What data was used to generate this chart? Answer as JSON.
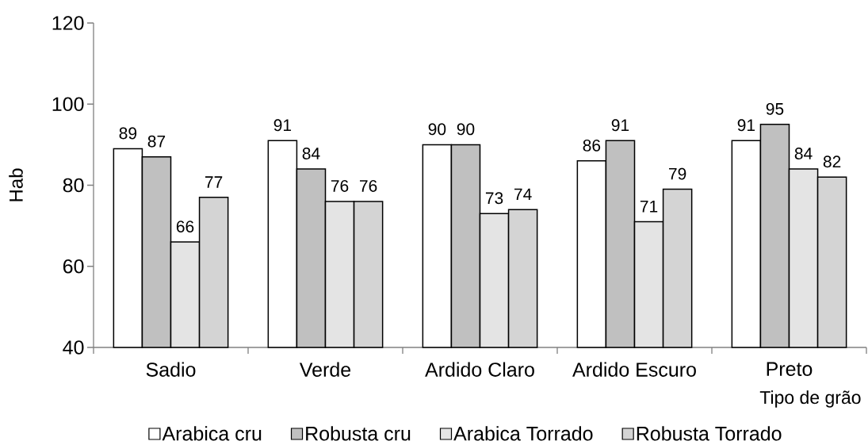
{
  "chart_data": {
    "type": "bar",
    "xlabel": "Tipo de grão",
    "ylabel": "Hab",
    "categories": [
      "Sadio",
      "Verde",
      "Ardido Claro",
      "Ardido Escuro",
      "Preto"
    ],
    "series": [
      {
        "name": "Arabica cru",
        "color": "#ffffff",
        "values": [
          89,
          91,
          90,
          86,
          91
        ]
      },
      {
        "name": "Robusta cru",
        "color": "#c0c0c0",
        "values": [
          87,
          84,
          90,
          91,
          95
        ]
      },
      {
        "name": "Arabica Torrado",
        "color": "#e4e4e4",
        "values": [
          66,
          76,
          73,
          71,
          84
        ]
      },
      {
        "name": "Robusta Torrado",
        "color": "#d4d4d4",
        "values": [
          77,
          76,
          74,
          79,
          82
        ]
      }
    ],
    "ylim": [
      40,
      120
    ],
    "yticks": [
      40,
      60,
      80,
      100,
      120
    ],
    "data_labels": true,
    "legend": "bottom"
  }
}
